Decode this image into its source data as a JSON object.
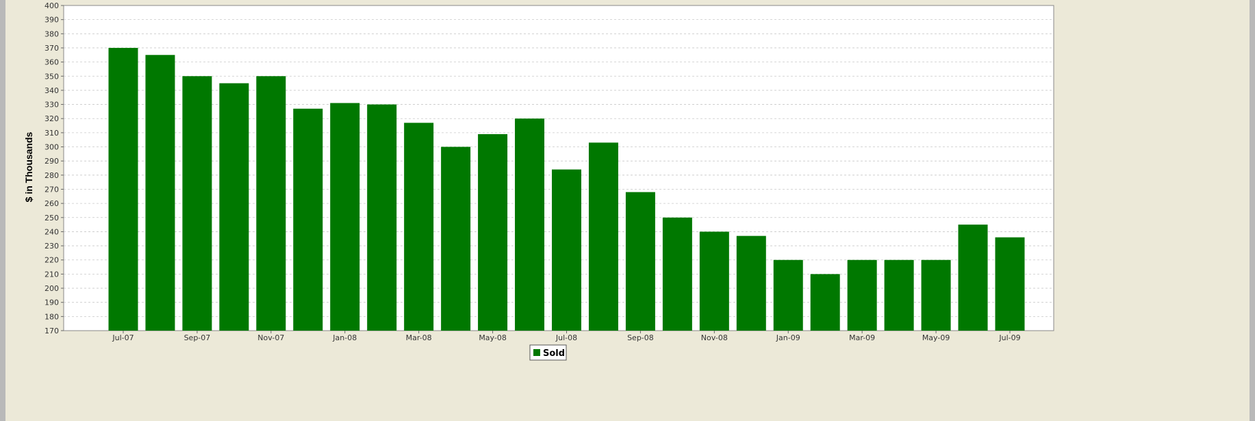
{
  "chart_data": {
    "type": "bar",
    "title": "",
    "xlabel": "",
    "ylabel": "$ in Thousands",
    "ylim": [
      170,
      400
    ],
    "ytick_step": 10,
    "grid": true,
    "legend_position": "bottom-center",
    "categories": [
      "Jul-07",
      "Aug-07",
      "Sep-07",
      "Oct-07",
      "Nov-07",
      "Dec-07",
      "Jan-08",
      "Feb-08",
      "Mar-08",
      "Apr-08",
      "May-08",
      "Jun-08",
      "Jul-08",
      "Aug-08",
      "Sep-08",
      "Oct-08",
      "Nov-08",
      "Dec-08",
      "Jan-09",
      "Feb-09",
      "Mar-09",
      "Apr-09",
      "May-09",
      "Jun-09",
      "Jul-09"
    ],
    "shown_xticks": [
      "Jul-07",
      "Sep-07",
      "Nov-07",
      "Jan-08",
      "Mar-08",
      "May-08",
      "Jul-08",
      "Sep-08",
      "Nov-08",
      "Jan-09",
      "Mar-09",
      "May-09",
      "Jul-09"
    ],
    "series": [
      {
        "name": "Sold",
        "color": "#007800",
        "values": [
          370,
          365,
          350,
          345,
          350,
          327,
          331,
          330,
          317,
          300,
          309,
          320,
          284,
          303,
          268,
          250,
          240,
          237,
          220,
          210,
          220,
          220,
          220,
          245,
          236
        ]
      }
    ]
  }
}
